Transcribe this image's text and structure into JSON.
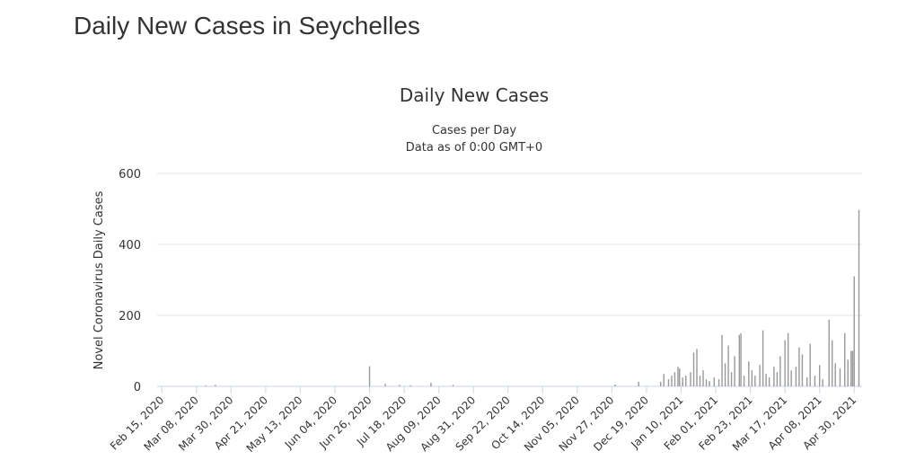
{
  "page_title": "Daily New Cases in Seychelles",
  "chart_data": {
    "type": "bar",
    "title": "Daily New Cases",
    "subtitle": [
      "Cases per Day",
      "Data as of 0:00 GMT+0"
    ],
    "y_label": "Novel Coronavirus Daily Cases",
    "color": "#999999",
    "grid": true,
    "xlim": [
      "Feb 12, 2020",
      "May 05, 2021"
    ],
    "xticks": [
      "Feb 15, 2020",
      "Mar 08, 2020",
      "Mar 30, 2020",
      "Apr 21, 2020",
      "May 13, 2020",
      "Jun 04, 2020",
      "Jun 26, 2020",
      "Jul 18, 2020",
      "Aug 09, 2020",
      "Aug 31, 2020",
      "Sep 22, 2020",
      "Oct 14, 2020",
      "Nov 05, 2020",
      "Nov 27, 2020",
      "Dec 19, 2020",
      "Jan 10, 2021",
      "Feb 01, 2021",
      "Feb 23, 2021",
      "Mar 17, 2021",
      "Apr 08, 2021",
      "Apr 30, 2021"
    ],
    "ylim": [
      0,
      600
    ],
    "yticks": [
      0,
      200,
      400,
      600
    ],
    "x": [
      "Mar 14, 2020",
      "Mar 20, 2020",
      "Jun 26, 2020",
      "Jul 06, 2020",
      "Jul 15, 2020",
      "Jul 22, 2020",
      "Aug 04, 2020",
      "Aug 18, 2020",
      "Nov 29, 2020",
      "Dec 14, 2020",
      "Dec 28, 2020",
      "Dec 30, 2020",
      "Jan 02, 2021",
      "Jan 04, 2021",
      "Jan 06, 2021",
      "Jan 08, 2021",
      "Jan 09, 2021",
      "Jan 11, 2021",
      "Jan 13, 2021",
      "Jan 16, 2021",
      "Jan 18, 2021",
      "Jan 20, 2021",
      "Jan 22, 2021",
      "Jan 24, 2021",
      "Jan 26, 2021",
      "Jan 28, 2021",
      "Jan 31, 2021",
      "Feb 03, 2021",
      "Feb 05, 2021",
      "Feb 07, 2021",
      "Feb 09, 2021",
      "Feb 11, 2021",
      "Feb 13, 2021",
      "Feb 16, 2021",
      "Feb 17, 2021",
      "Feb 19, 2021",
      "Feb 22, 2021",
      "Feb 24, 2021",
      "Feb 26, 2021",
      "Mar 01, 2021",
      "Mar 03, 2021",
      "Mar 05, 2021",
      "Mar 07, 2021",
      "Mar 10, 2021",
      "Mar 12, 2021",
      "Mar 14, 2021",
      "Mar 17, 2021",
      "Mar 19, 2021",
      "Mar 21, 2021",
      "Mar 24, 2021",
      "Mar 26, 2021",
      "Mar 28, 2021",
      "Mar 31, 2021",
      "Apr 02, 2021",
      "Apr 05, 2021",
      "Apr 08, 2021",
      "Apr 10, 2021",
      "Apr 14, 2021",
      "Apr 16, 2021",
      "Apr 18, 2021",
      "Apr 21, 2021",
      "Apr 24, 2021",
      "Apr 26, 2021",
      "Apr 28, 2021",
      "Apr 29, 2021",
      "Apr 30, 2021",
      "May 03, 2021"
    ],
    "values": [
      2,
      4,
      57,
      7,
      4,
      3,
      10,
      4,
      5,
      13,
      13,
      35,
      20,
      30,
      40,
      55,
      50,
      25,
      30,
      40,
      95,
      105,
      30,
      45,
      20,
      15,
      25,
      20,
      145,
      65,
      115,
      40,
      85,
      145,
      150,
      30,
      70,
      45,
      30,
      60,
      158,
      35,
      25,
      55,
      40,
      85,
      130,
      150,
      45,
      55,
      110,
      90,
      25,
      120,
      30,
      60,
      20,
      188,
      130,
      65,
      50,
      150,
      75,
      100,
      100,
      310,
      497
    ]
  }
}
